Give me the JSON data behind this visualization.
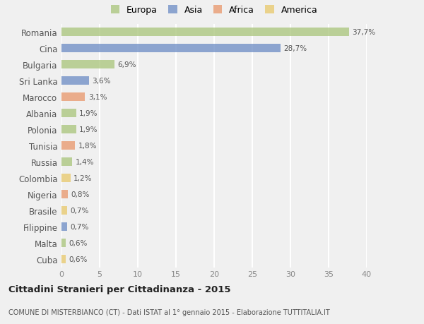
{
  "countries": [
    "Cuba",
    "Malta",
    "Filippine",
    "Brasile",
    "Nigeria",
    "Colombia",
    "Russia",
    "Tunisia",
    "Polonia",
    "Albania",
    "Marocco",
    "Sri Lanka",
    "Bulgaria",
    "Cina",
    "Romania"
  ],
  "values": [
    0.6,
    0.6,
    0.7,
    0.7,
    0.8,
    1.2,
    1.4,
    1.8,
    1.9,
    1.9,
    3.1,
    3.6,
    6.9,
    28.7,
    37.7
  ],
  "labels": [
    "0,6%",
    "0,6%",
    "0,7%",
    "0,7%",
    "0,8%",
    "1,2%",
    "1,4%",
    "1,8%",
    "1,9%",
    "1,9%",
    "3,1%",
    "3,6%",
    "6,9%",
    "28,7%",
    "37,7%"
  ],
  "colors": [
    "#e8c86a",
    "#a8c47a",
    "#6b8bc4",
    "#e8c86a",
    "#e8956a",
    "#e8c86a",
    "#a8c47a",
    "#e8956a",
    "#a8c47a",
    "#a8c47a",
    "#e8956a",
    "#6b8bc4",
    "#a8c47a",
    "#6b8bc4",
    "#a8c47a"
  ],
  "legend_labels": [
    "Europa",
    "Asia",
    "Africa",
    "America"
  ],
  "legend_colors": [
    "#a8c47a",
    "#6b8bc4",
    "#e8956a",
    "#e8c86a"
  ],
  "title": "Cittadini Stranieri per Cittadinanza - 2015",
  "subtitle": "COMUNE DI MISTERBIANCO (CT) - Dati ISTAT al 1° gennaio 2015 - Elaborazione TUTTITALIA.IT",
  "xlim": [
    0,
    40
  ],
  "xticks": [
    0,
    5,
    10,
    15,
    20,
    25,
    30,
    35,
    40
  ],
  "bg_color": "#f0f0f0",
  "grid_color": "#ffffff",
  "bar_alpha": 0.75,
  "bar_height": 0.55
}
